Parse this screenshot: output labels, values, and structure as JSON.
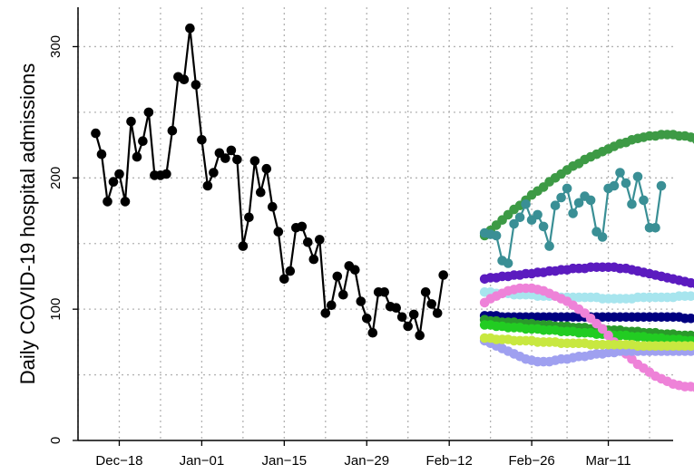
{
  "chart_data": {
    "type": "line",
    "title": "",
    "xlabel": "",
    "ylabel": "Daily COVID-19 hospital admissions",
    "ylim": [
      0,
      330
    ],
    "x_start": "2020-12-11",
    "x_end": "2021-03-22",
    "x_ticks": [
      {
        "date": "2020-12-18",
        "label": "Dec−18"
      },
      {
        "date": "2021-01-01",
        "label": "Jan−01"
      },
      {
        "date": "2021-01-15",
        "label": "Jan−15"
      },
      {
        "date": "2021-01-29",
        "label": "Jan−29"
      },
      {
        "date": "2021-02-12",
        "label": "Feb−12"
      },
      {
        "date": "2021-02-26",
        "label": "Feb−26"
      },
      {
        "date": "2021-03-11",
        "label": "Mar−11"
      }
    ],
    "y_ticks": [
      0,
      100,
      200,
      300
    ],
    "grid": true,
    "observed": {
      "color": "#000000",
      "start_date": "2020-12-14",
      "values": [
        234,
        218,
        182,
        197,
        203,
        182,
        243,
        216,
        228,
        250,
        202,
        202,
        203,
        236,
        277,
        275,
        314,
        271,
        229,
        194,
        204,
        219,
        215,
        221,
        214,
        148,
        170,
        213,
        189,
        207,
        178,
        159,
        123,
        129,
        162,
        163,
        151,
        138,
        153,
        97,
        103,
        125,
        111,
        133,
        130,
        106,
        93,
        82,
        113,
        113,
        102,
        101,
        94,
        87,
        96,
        80,
        113,
        104,
        97,
        126
      ]
    },
    "forecast_start_date": "2021-02-18",
    "forecasts": [
      {
        "color": "#3d9a45",
        "values": [
          156,
          160,
          164,
          168,
          172,
          176,
          179,
          183,
          187,
          190,
          193,
          197,
          200,
          203,
          206,
          209,
          211,
          214,
          216,
          218,
          220,
          222,
          224,
          226,
          227,
          229,
          230,
          231,
          232,
          232,
          233,
          233,
          233,
          232,
          232,
          231,
          229,
          227,
          225
        ]
      },
      {
        "color": "#3a8f95",
        "values": [
          158,
          157,
          156,
          137,
          135,
          165,
          170,
          180,
          168,
          172,
          163,
          148,
          179,
          185,
          192,
          173,
          181,
          186,
          183,
          159,
          155,
          192,
          194,
          204,
          196,
          180,
          201,
          183,
          162,
          162,
          194
        ]
      },
      {
        "color": "#5b1bbf",
        "values": [
          123,
          124,
          124,
          125,
          125,
          126,
          126,
          127,
          127,
          128,
          128,
          129,
          129,
          130,
          130,
          131,
          131,
          131,
          132,
          132,
          132,
          132,
          132,
          131,
          131,
          130,
          129,
          128,
          127,
          126,
          125,
          124,
          123,
          122,
          121,
          120,
          119,
          118,
          117
        ]
      },
      {
        "color": "#a7e5ee",
        "values": [
          113,
          113,
          112,
          112,
          112,
          111,
          111,
          111,
          111,
          110,
          110,
          110,
          110,
          109,
          109,
          109,
          109,
          109,
          109,
          109,
          108,
          108,
          108,
          108,
          108,
          108,
          109,
          109,
          109,
          109,
          109,
          109,
          109,
          110,
          110,
          110,
          110,
          111,
          111
        ]
      },
      {
        "color": "#000080",
        "values": [
          95,
          95,
          95,
          94,
          94,
          94,
          94,
          94,
          94,
          94,
          94,
          94,
          94,
          94,
          94,
          94,
          94,
          94,
          94,
          94,
          94,
          94,
          94,
          94,
          94,
          94,
          94,
          94,
          94,
          94,
          94,
          94,
          94,
          94,
          93,
          93,
          93,
          93,
          93
        ]
      },
      {
        "color": "#2a9a2a",
        "values": [
          92,
          91,
          91,
          90,
          90,
          90,
          89,
          89,
          89,
          88,
          88,
          88,
          87,
          87,
          87,
          86,
          86,
          86,
          85,
          85,
          85,
          84,
          84,
          84,
          83,
          83,
          83,
          82,
          82,
          82,
          81,
          81,
          81,
          80,
          80,
          80,
          79,
          79,
          79
        ]
      },
      {
        "color": "#22cc22",
        "values": [
          88,
          88,
          87,
          87,
          86,
          86,
          86,
          85,
          85,
          85,
          84,
          84,
          84,
          83,
          83,
          83,
          82,
          82,
          82,
          81,
          81,
          81,
          80,
          80,
          80,
          79,
          79,
          79,
          78,
          78,
          78,
          77,
          77,
          77,
          76,
          76,
          76,
          75,
          75
        ]
      },
      {
        "color": "#ee82d8",
        "values": [
          105,
          108,
          110,
          112,
          114,
          115,
          116,
          116,
          116,
          115,
          114,
          112,
          110,
          108,
          106,
          103,
          100,
          97,
          93,
          89,
          85,
          80,
          75,
          70,
          66,
          62,
          58,
          55,
          52,
          49,
          47,
          45,
          43,
          42,
          41,
          41,
          40,
          40,
          41
        ]
      },
      {
        "color": "#9fa0f0",
        "values": [
          76,
          74,
          72,
          70,
          68,
          66,
          64,
          62,
          61,
          60,
          60,
          60,
          61,
          62,
          62,
          63,
          64,
          64,
          65,
          66,
          66,
          67,
          67,
          68,
          68,
          68,
          68,
          68,
          68,
          68,
          68,
          68,
          68,
          68,
          68,
          68,
          68,
          68,
          68
        ]
      },
      {
        "color": "#c8e840",
        "values": [
          78,
          78,
          77,
          77,
          77,
          76,
          76,
          76,
          76,
          75,
          75,
          75,
          75,
          74,
          74,
          74,
          74,
          74,
          73,
          73,
          73,
          73,
          73,
          73,
          73,
          73,
          72,
          72,
          72,
          72,
          72,
          72,
          72,
          72,
          72,
          72,
          72,
          72,
          72
        ]
      }
    ]
  }
}
